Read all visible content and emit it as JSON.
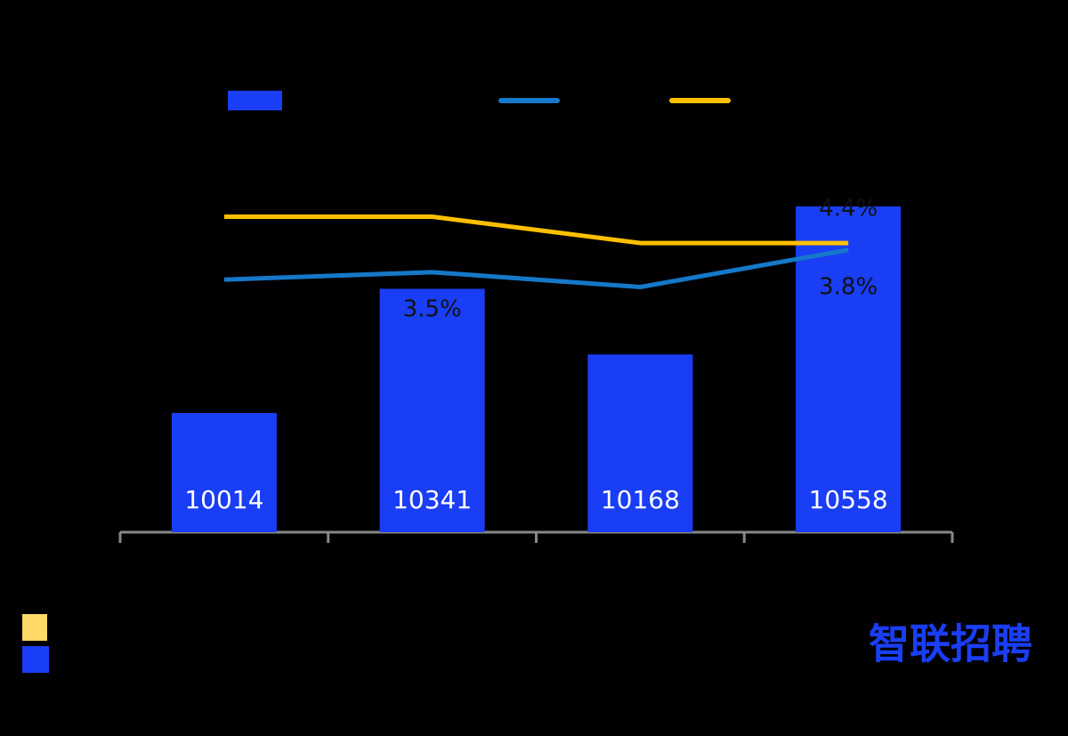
{
  "chart_data": {
    "type": "bar",
    "categories": [
      null,
      null,
      null,
      null
    ],
    "series": [
      {
        "type": "bar",
        "color": "#1a3ef5",
        "values": [
          10014,
          10341,
          10168,
          10558
        ]
      },
      {
        "type": "line",
        "color": "#1578c8",
        "values": [
          3.4,
          3.5,
          3.3,
          3.8
        ],
        "value_labels": [
          null,
          "3.5%",
          null,
          "3.8%"
        ],
        "ylim": [
          0,
          4.6
        ]
      },
      {
        "type": "line",
        "color": "#ffc000",
        "values": [
          4.8,
          4.8,
          4.4,
          4.4
        ],
        "value_labels": [
          null,
          null,
          null,
          "4.4%"
        ],
        "ylim": [
          0,
          5.2
        ]
      }
    ],
    "ylim": [
      9700,
      10600
    ],
    "logo": "智联招聘"
  }
}
